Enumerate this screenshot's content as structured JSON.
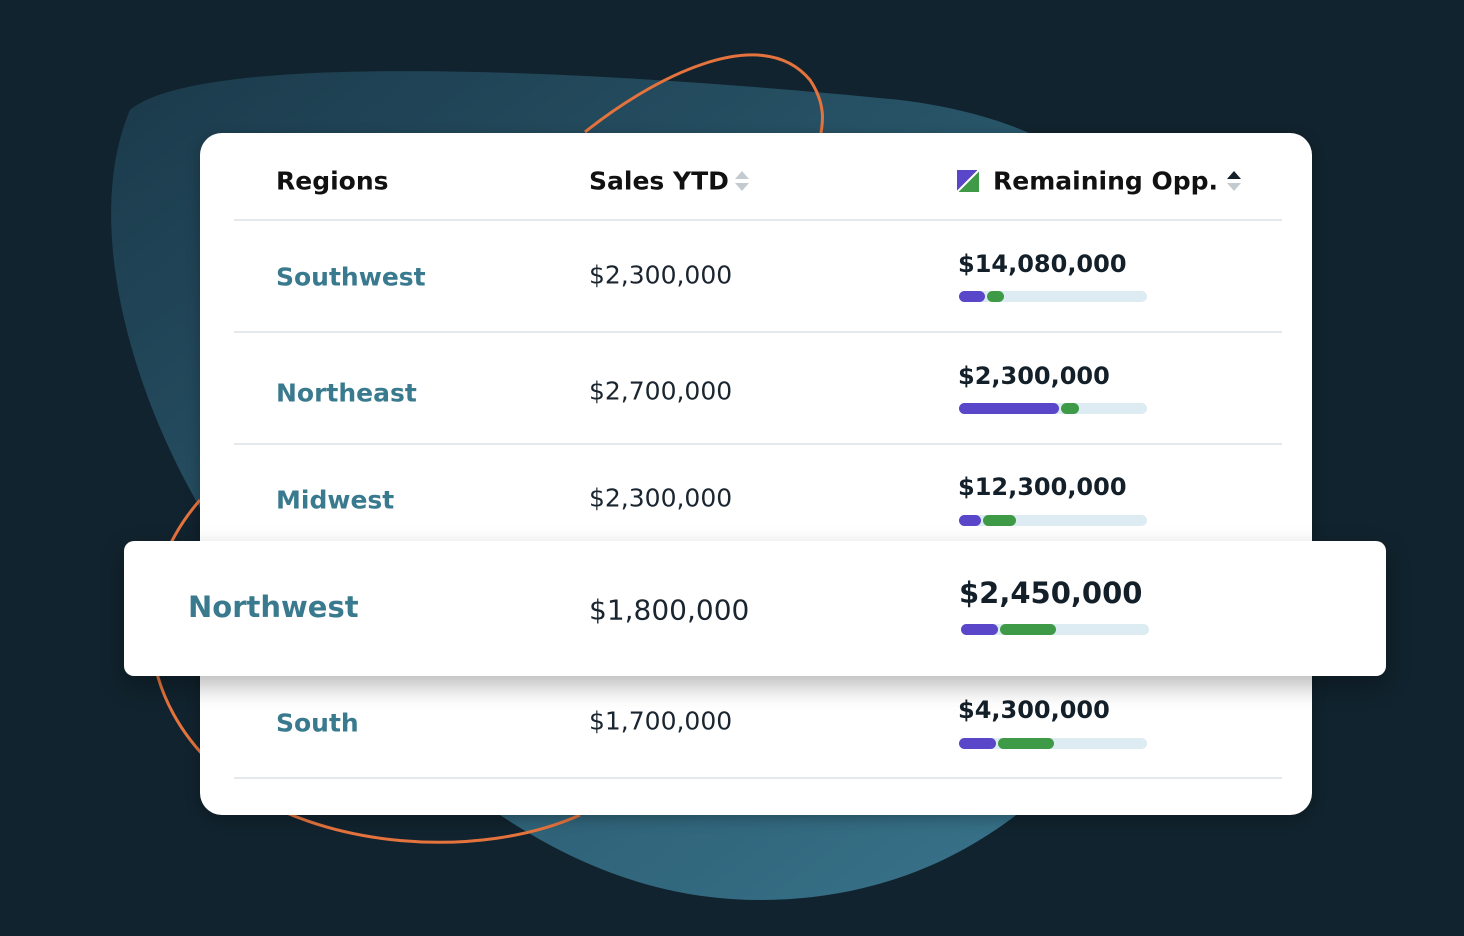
{
  "table": {
    "headers": [
      "Regions",
      "Sales YTD",
      "Remaining Opp."
    ],
    "rows": [
      [
        "Southwest",
        "$2,300,000",
        "$14,080,000"
      ],
      [
        "Northeast",
        "$2,700,000",
        "$2,300,000"
      ],
      [
        "Midwest",
        "$2,300,000",
        "$12,300,000"
      ],
      [
        "Northwest",
        "$1,800,000",
        "$2,450,000"
      ],
      [
        "South",
        "$1,700,000",
        "$4,300,000"
      ]
    ]
  }
}
